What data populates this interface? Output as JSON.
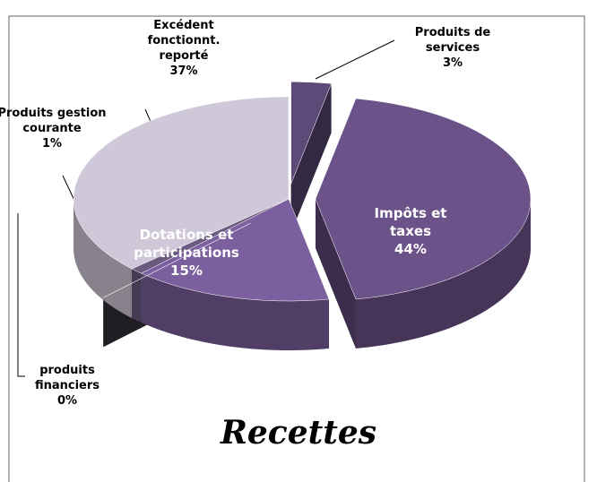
{
  "chart_data": {
    "type": "pie",
    "title": "Recettes",
    "categories": [
      "Produits de services",
      "Impôts et taxes",
      "Dotations et participations",
      "produits financiers",
      "Produits gestion courante",
      "Excédent fonctionnt. reporté"
    ],
    "values": [
      3,
      44,
      15,
      0,
      1,
      37
    ],
    "value_labels": [
      "3%",
      "44%",
      "15%",
      "0%",
      "1%",
      "37%"
    ],
    "colors": [
      "#5d4a78",
      "#6b5288",
      "#7b5f9e",
      "#3a3540",
      "#6a5a80",
      "#cfc8d8"
    ]
  }
}
